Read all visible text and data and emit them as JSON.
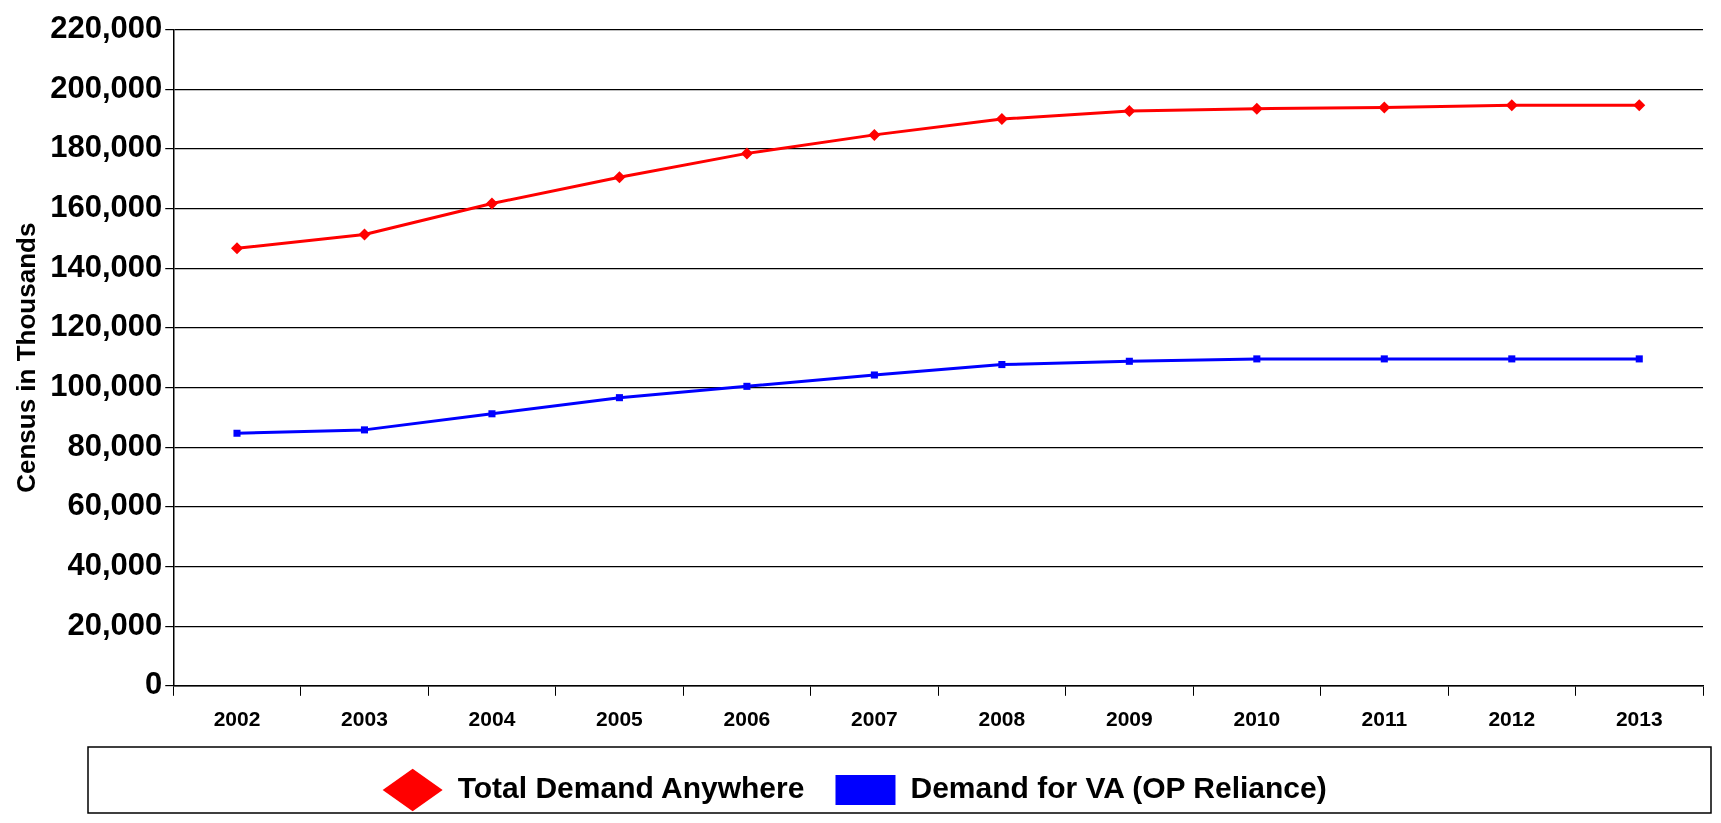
{
  "chart_data": {
    "type": "line",
    "ylabel": "Census in Thousands",
    "categories": [
      "2002",
      "2003",
      "2004",
      "2005",
      "2006",
      "2007",
      "2008",
      "2009",
      "2010",
      "2011",
      "2012",
      "2013"
    ],
    "series": [
      {
        "name": "Total Demand Anywhere",
        "color": "#ff0000",
        "marker": "diamond",
        "values": [
          146700,
          151300,
          161700,
          170500,
          178500,
          184700,
          190000,
          192700,
          193500,
          193900,
          194600,
          194600
        ]
      },
      {
        "name": "Demand for VA (OP Reliance)",
        "color": "#0000ff",
        "marker": "square",
        "values": [
          84700,
          85800,
          91200,
          96600,
          100400,
          104200,
          107700,
          108800,
          109600,
          109600,
          109600,
          109600
        ]
      }
    ],
    "ylim": [
      0,
      220000
    ],
    "yticks": [
      {
        "value": 0,
        "label": "0"
      },
      {
        "value": 20000,
        "label": "20,000"
      },
      {
        "value": 40000,
        "label": "40,000"
      },
      {
        "value": 60000,
        "label": "60,000"
      },
      {
        "value": 80000,
        "label": "80,000"
      },
      {
        "value": 100000,
        "label": "100,000"
      },
      {
        "value": 120000,
        "label": "120,000"
      },
      {
        "value": 140000,
        "label": "140,000"
      },
      {
        "value": 160000,
        "label": "160,000"
      },
      {
        "value": 180000,
        "label": "180,000"
      },
      {
        "value": 200000,
        "label": "200,000"
      },
      {
        "value": 220000,
        "label": "220,000"
      }
    ],
    "grid": "y",
    "legend": "bottom",
    "line_style": "solid"
  }
}
